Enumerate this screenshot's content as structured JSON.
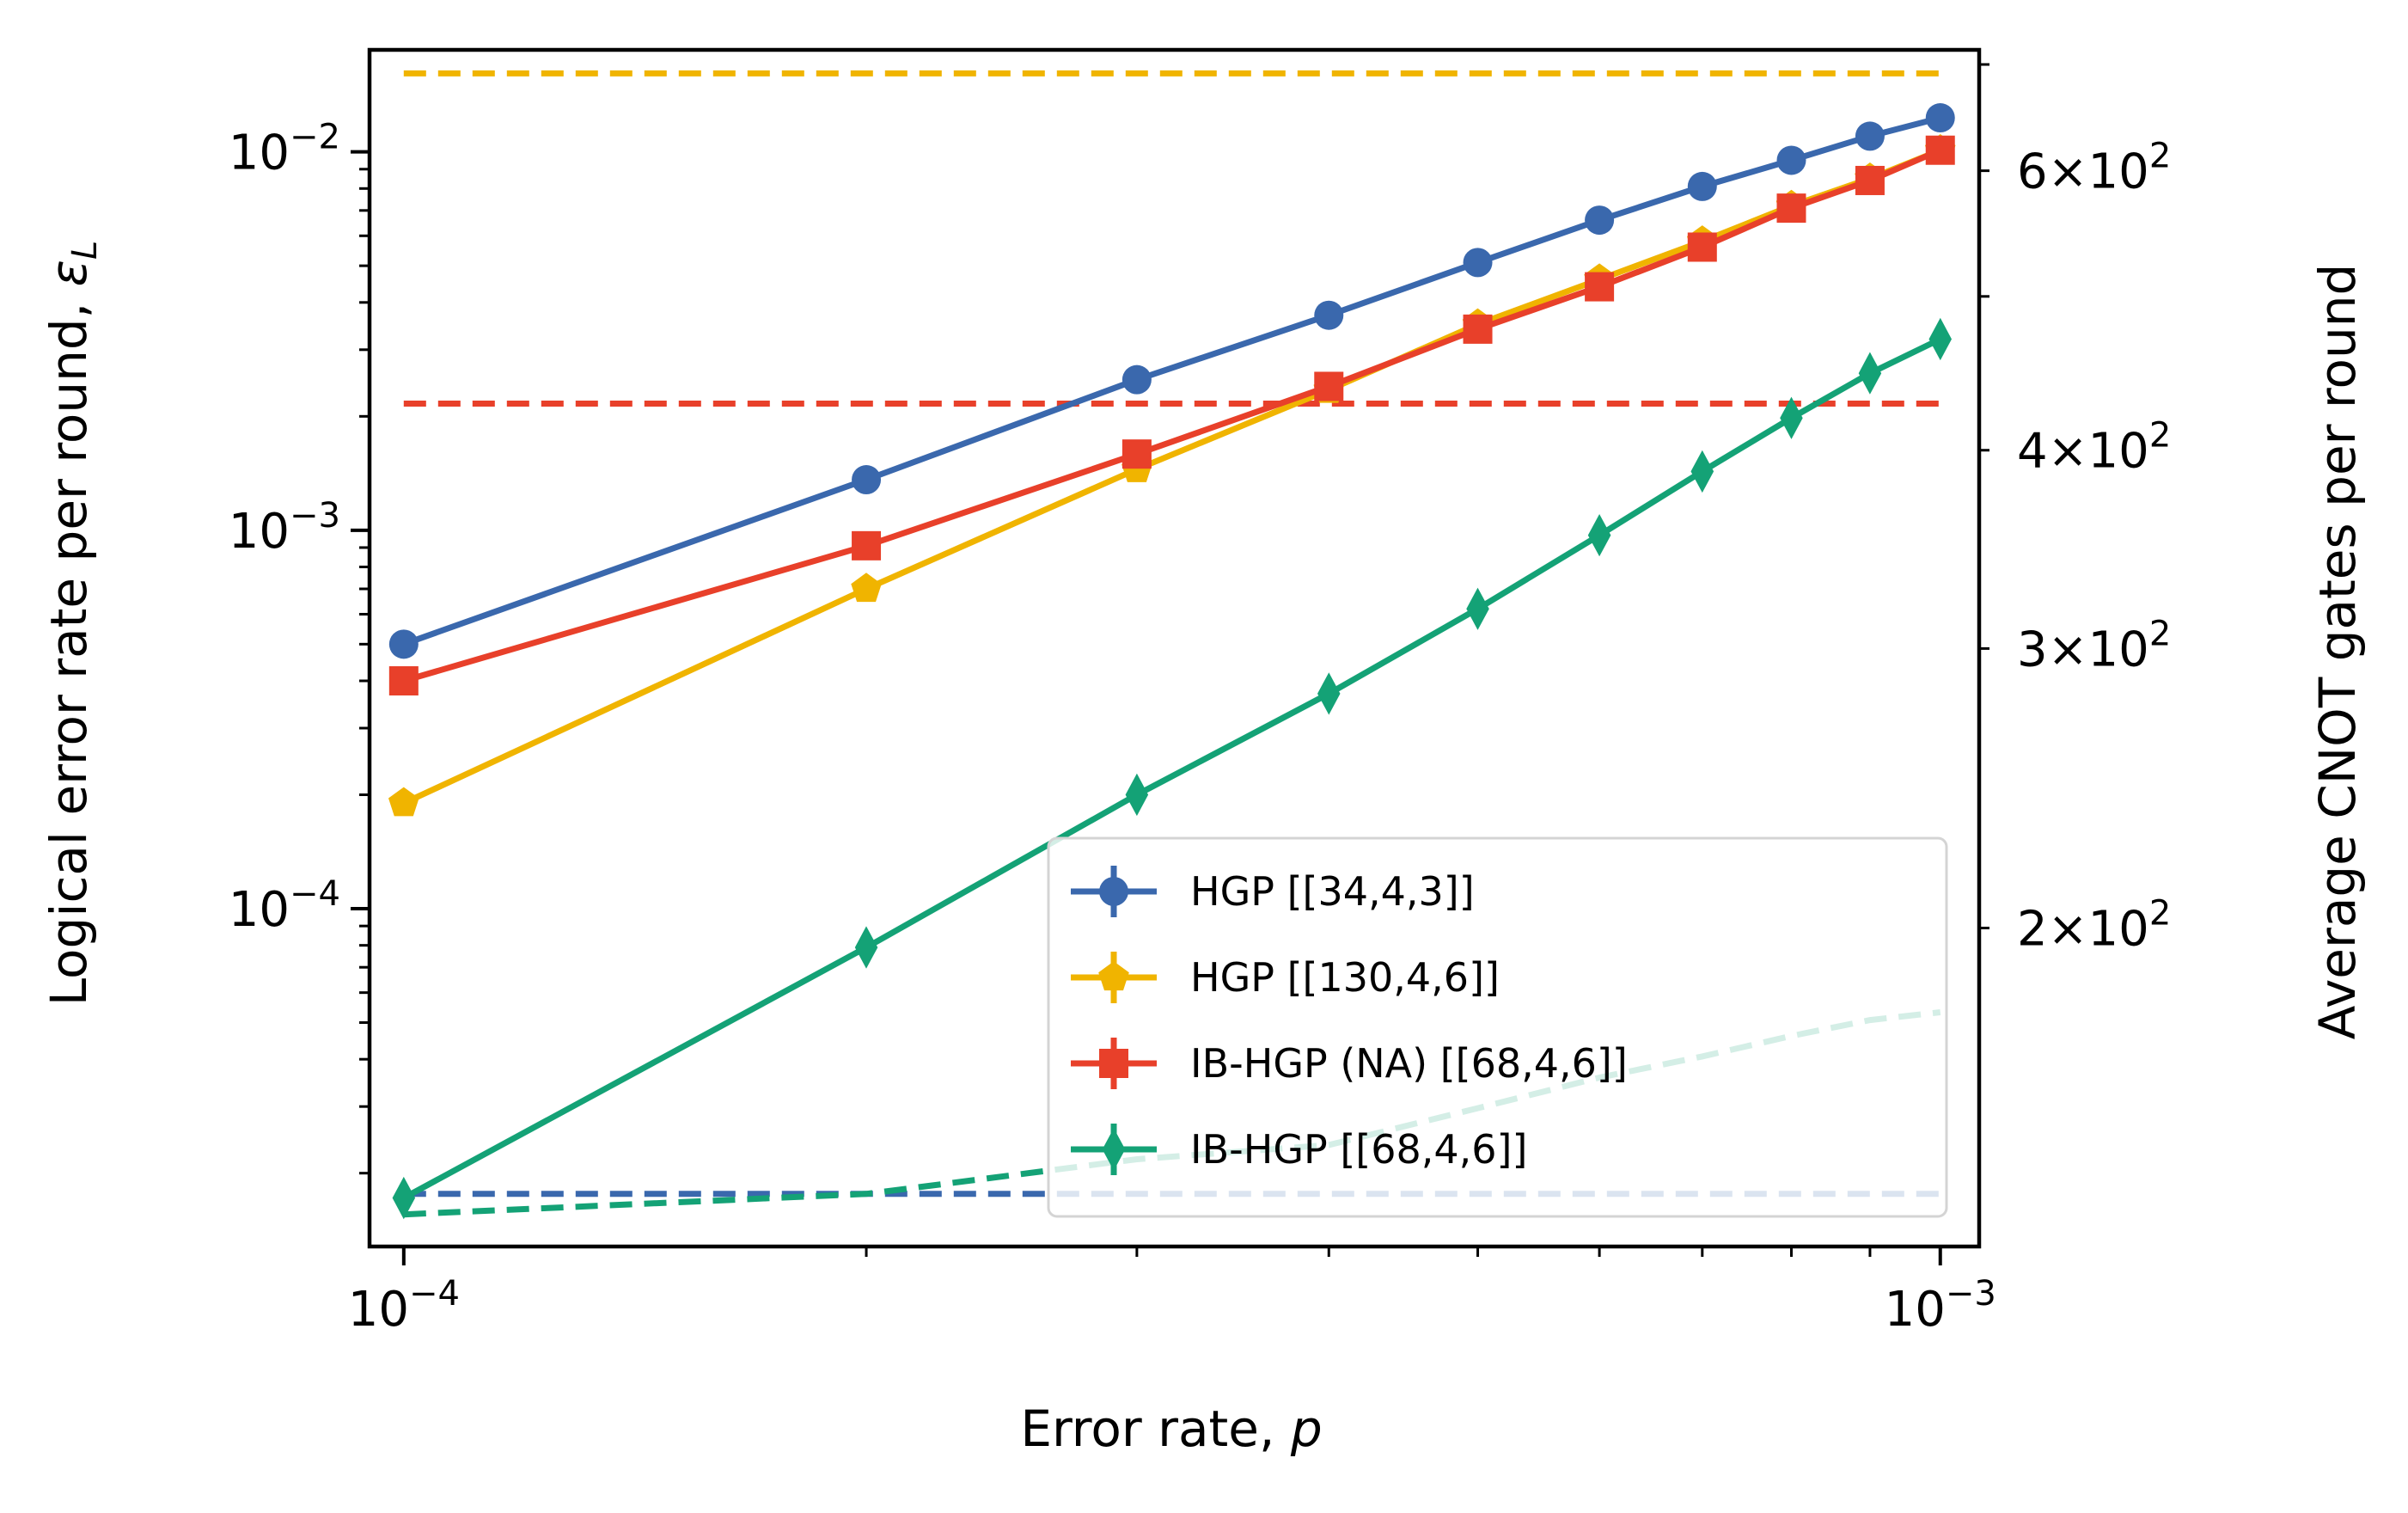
{
  "chart_data": {
    "type": "line",
    "title": "",
    "xlabel": "Error rate, p",
    "ylabel": "Logical error rate per round, ε_L",
    "ylabel_right": "Average CNOT gates per round",
    "xscale": "log",
    "yscale": "log",
    "yscale_right": "log",
    "xlim": [
      9.5e-05,
      0.00106
    ],
    "ylim": [
      1.28e-05,
      0.0186
    ],
    "ylim_right": [
      126,
      715
    ],
    "x": [
      0.0001,
      0.0002,
      0.0003,
      0.0004,
      0.0005,
      0.0006,
      0.0007,
      0.0008,
      0.0009,
      0.001
    ],
    "x_ticks": [
      {
        "value": 0.0001,
        "label": "10^-4"
      },
      {
        "value": 0.001,
        "label": "10^-3"
      }
    ],
    "y_ticks": [
      {
        "value": 0.0001,
        "label": "10^-4"
      },
      {
        "value": 0.001,
        "label": "10^-3"
      },
      {
        "value": 0.01,
        "label": "10^-2"
      }
    ],
    "y_right_ticks": [
      {
        "value": 200,
        "label": "2×10^2"
      },
      {
        "value": 300,
        "label": "3×10^2"
      },
      {
        "value": 400,
        "label": "4×10^2"
      },
      {
        "value": 600,
        "label": "6×10^2"
      }
    ],
    "legend_position": "lower-right",
    "grid": false,
    "series": [
      {
        "name": "HGP [[34,4,3]]",
        "color": "#3a68ad",
        "marker": "circle",
        "axis": "left",
        "values": [
          0.0005,
          0.00136,
          0.0025,
          0.0037,
          0.0051,
          0.0066,
          0.0081,
          0.0095,
          0.011,
          0.0123
        ]
      },
      {
        "name": "HGP [[130,4,6]]",
        "color": "#f0b400",
        "marker": "pentagon",
        "axis": "left",
        "values": [
          0.00019,
          0.0007,
          0.00145,
          0.00235,
          0.0035,
          0.0046,
          0.0058,
          0.0072,
          0.0085,
          0.0101
        ]
      },
      {
        "name": "IB-HGP (NA) [[68,4,6]]",
        "color": "#e8402a",
        "marker": "square",
        "axis": "left",
        "values": [
          0.0004,
          0.00091,
          0.00159,
          0.0024,
          0.0034,
          0.0044,
          0.0056,
          0.0071,
          0.0084,
          0.0101
        ]
      },
      {
        "name": "IB-HGP [[68,4,6]]",
        "color": "#14a276",
        "marker": "diamond",
        "axis": "left",
        "values": [
          1.72e-05,
          7.9e-05,
          0.0002,
          0.00037,
          0.00062,
          0.00097,
          0.00143,
          0.00198,
          0.0026,
          0.0032
        ]
      }
    ],
    "cnot_series": [
      {
        "color": "#f0b400",
        "values": [
          691,
          691
        ]
      },
      {
        "color": "#e8402a",
        "values": [
          428,
          428
        ]
      },
      {
        "color": "#3a68ad",
        "values": [
          136,
          136,
          136,
          136,
          136,
          136,
          136,
          136,
          136,
          136
        ]
      },
      {
        "color": "#14a276",
        "values": [
          132,
          136,
          143,
          146,
          154,
          161,
          166,
          171,
          175,
          177
        ]
      }
    ],
    "legend": [
      {
        "label": "HGP [[34,4,3]]",
        "color": "#3a68ad",
        "marker": "circle"
      },
      {
        "label": "HGP [[130,4,6]]",
        "color": "#f0b400",
        "marker": "pentagon"
      },
      {
        "label": "IB-HGP (NA) [[68,4,6]]",
        "color": "#e8402a",
        "marker": "square"
      },
      {
        "label": "IB-HGP [[68,4,6]]",
        "color": "#14a276",
        "marker": "diamond"
      }
    ]
  }
}
